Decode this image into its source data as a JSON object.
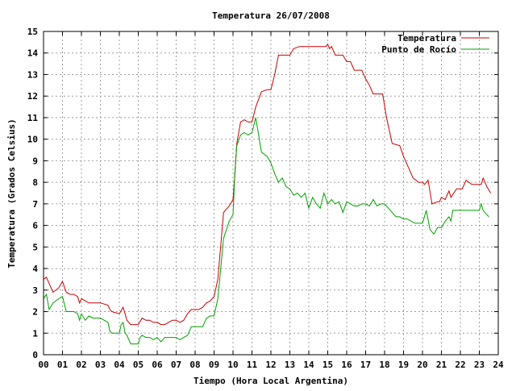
{
  "chart_data": {
    "type": "line",
    "title": "Temperatura 26/07/2008",
    "xlabel": "Tiempo (Hora Local Argentina)",
    "ylabel": "Temperatura (Grados Celsius)",
    "xlim": [
      0,
      24
    ],
    "ylim": [
      0,
      15
    ],
    "xticks": [
      0,
      1,
      2,
      3,
      4,
      5,
      6,
      7,
      8,
      9,
      10,
      11,
      12,
      13,
      14,
      15,
      16,
      17,
      18,
      19,
      20,
      21,
      22,
      23,
      24
    ],
    "xtick_labels": [
      "00",
      "01",
      "02",
      "03",
      "04",
      "05",
      "06",
      "07",
      "08",
      "09",
      "10",
      "11",
      "12",
      "13",
      "14",
      "15",
      "16",
      "17",
      "18",
      "19",
      "20",
      "21",
      "22",
      "23",
      "24"
    ],
    "yticks": [
      0,
      1,
      2,
      3,
      4,
      5,
      6,
      7,
      8,
      9,
      10,
      11,
      12,
      13,
      14,
      15
    ],
    "ytick_labels": [
      "0",
      "1",
      "2",
      "3",
      "4",
      "5",
      "6",
      "7",
      "8",
      "9",
      "10",
      "11",
      "12",
      "13",
      "14",
      "15"
    ],
    "grid": true,
    "legend_position": "top-right",
    "series": [
      {
        "name": "Temperatura",
        "color": "#cc0000",
        "x": [
          0,
          0.15,
          0.3,
          0.5,
          0.8,
          1.0,
          1.2,
          1.4,
          1.6,
          1.8,
          1.9,
          2.0,
          2.2,
          2.4,
          2.6,
          3.0,
          3.4,
          3.5,
          3.6,
          4.0,
          4.2,
          4.3,
          4.4,
          4.6,
          4.8,
          5.0,
          5.2,
          5.4,
          5.6,
          5.8,
          6.0,
          6.2,
          6.4,
          6.6,
          6.8,
          7.0,
          7.2,
          7.4,
          7.6,
          7.8,
          8.0,
          8.2,
          8.4,
          8.6,
          8.8,
          9.0,
          9.2,
          9.5,
          9.8,
          10.0,
          10.1,
          10.2,
          10.4,
          10.6,
          10.8,
          11.0,
          11.2,
          11.5,
          11.8,
          12.0,
          12.2,
          12.4,
          12.6,
          13.0,
          13.2,
          13.5,
          14.0,
          14.5,
          14.9,
          15.0,
          15.1,
          15.2,
          15.4,
          15.6,
          15.8,
          16.0,
          16.2,
          16.4,
          16.6,
          16.8,
          17.0,
          17.2,
          17.4,
          17.6,
          17.9,
          18.1,
          18.4,
          18.8,
          19.0,
          19.2,
          19.5,
          19.8,
          20.0,
          20.1,
          20.3,
          20.5,
          20.8,
          20.9,
          21.0,
          21.2,
          21.4,
          21.5,
          21.8,
          22.0,
          22.1,
          22.3,
          22.6,
          22.8,
          23.1,
          23.2,
          23.4,
          23.6
        ],
        "values": [
          3.5,
          3.6,
          3.3,
          2.9,
          3.1,
          3.4,
          2.9,
          2.8,
          2.8,
          2.7,
          2.4,
          2.6,
          2.5,
          2.4,
          2.4,
          2.4,
          2.3,
          2.1,
          2.0,
          1.9,
          2.2,
          1.9,
          1.6,
          1.4,
          1.4,
          1.4,
          1.7,
          1.6,
          1.6,
          1.5,
          1.5,
          1.4,
          1.4,
          1.5,
          1.6,
          1.6,
          1.5,
          1.6,
          1.9,
          2.1,
          2.1,
          2.1,
          2.2,
          2.4,
          2.5,
          2.7,
          3.5,
          6.6,
          6.9,
          7.2,
          8.4,
          9.8,
          10.8,
          10.9,
          10.8,
          10.8,
          11.5,
          12.2,
          12.3,
          12.3,
          13.0,
          13.9,
          13.9,
          13.9,
          14.2,
          14.3,
          14.3,
          14.3,
          14.3,
          14.4,
          14.2,
          14.3,
          13.9,
          13.9,
          13.9,
          13.6,
          13.6,
          13.2,
          13.2,
          13.2,
          12.8,
          12.5,
          12.1,
          12.1,
          12.1,
          11.0,
          9.8,
          9.7,
          9.2,
          8.8,
          8.2,
          8.0,
          8.0,
          7.9,
          8.1,
          7.0,
          7.1,
          7.1,
          7.3,
          7.2,
          7.6,
          7.3,
          7.7,
          7.7,
          7.7,
          8.1,
          7.9,
          7.9,
          7.9,
          8.2,
          7.8,
          7.5
        ]
      },
      {
        "name": "Punto de Rocío",
        "color": "#00a000",
        "x": [
          0,
          0.15,
          0.3,
          0.5,
          0.8,
          1.0,
          1.2,
          1.4,
          1.6,
          1.8,
          1.9,
          2.0,
          2.2,
          2.4,
          2.6,
          2.8,
          3.0,
          3.2,
          3.4,
          3.5,
          3.6,
          4.0,
          4.1,
          4.2,
          4.3,
          4.4,
          4.6,
          4.8,
          5.0,
          5.1,
          5.2,
          5.4,
          5.6,
          5.8,
          6.0,
          6.2,
          6.4,
          6.6,
          6.8,
          7.0,
          7.2,
          7.4,
          7.6,
          7.8,
          8.0,
          8.2,
          8.4,
          8.6,
          8.8,
          9.0,
          9.2,
          9.5,
          9.8,
          10.0,
          10.1,
          10.2,
          10.4,
          10.6,
          10.8,
          11.0,
          11.2,
          11.5,
          11.8,
          12.0,
          12.2,
          12.4,
          12.6,
          12.8,
          13.0,
          13.2,
          13.4,
          13.6,
          13.8,
          14.0,
          14.2,
          14.4,
          14.6,
          14.8,
          15.0,
          15.2,
          15.4,
          15.6,
          15.8,
          16.0,
          16.2,
          16.4,
          16.6,
          16.8,
          17.0,
          17.2,
          17.4,
          17.6,
          17.8,
          18.0,
          18.2,
          18.4,
          18.6,
          18.8,
          19.0,
          19.2,
          19.4,
          19.6,
          19.8,
          20.0,
          20.1,
          20.2,
          20.4,
          20.6,
          20.8,
          21.0,
          21.2,
          21.4,
          21.5,
          21.6,
          21.8,
          22.0,
          22.2,
          22.4,
          22.6,
          22.8,
          23.0,
          23.1,
          23.2,
          23.4,
          23.5
        ],
        "values": [
          2.6,
          2.8,
          2.1,
          2.4,
          2.6,
          2.7,
          2.0,
          2.0,
          2.0,
          1.9,
          1.6,
          1.9,
          1.6,
          1.8,
          1.7,
          1.7,
          1.7,
          1.6,
          1.5,
          1.1,
          1.0,
          1.0,
          1.4,
          1.5,
          1.0,
          0.9,
          0.5,
          0.5,
          0.5,
          0.8,
          0.9,
          0.8,
          0.8,
          0.7,
          0.8,
          0.6,
          0.8,
          0.8,
          0.8,
          0.8,
          0.7,
          0.8,
          0.9,
          1.3,
          1.3,
          1.3,
          1.3,
          1.7,
          1.8,
          1.8,
          2.6,
          5.4,
          6.2,
          6.5,
          8.5,
          9.7,
          10.2,
          10.3,
          10.2,
          10.3,
          11.0,
          9.4,
          9.2,
          8.9,
          8.4,
          8.0,
          8.2,
          7.8,
          7.7,
          7.4,
          7.5,
          7.3,
          7.5,
          6.8,
          7.3,
          7.0,
          6.8,
          7.5,
          7.0,
          7.2,
          7.0,
          7.1,
          6.6,
          7.1,
          7.0,
          6.9,
          6.9,
          7.0,
          7.0,
          6.9,
          7.2,
          6.9,
          7.0,
          7.0,
          6.8,
          6.6,
          6.4,
          6.4,
          6.3,
          6.3,
          6.2,
          6.1,
          6.1,
          6.1,
          6.4,
          6.7,
          5.8,
          5.6,
          5.9,
          5.9,
          6.2,
          6.4,
          6.2,
          6.7,
          6.7,
          6.7,
          6.7,
          6.7,
          6.7,
          6.7,
          6.7,
          7.0,
          6.7,
          6.5,
          6.4
        ]
      }
    ]
  }
}
